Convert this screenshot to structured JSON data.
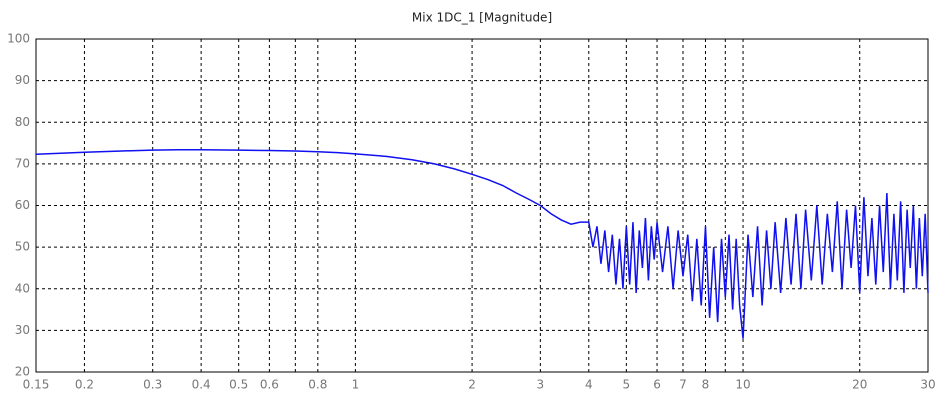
{
  "chart_data": {
    "type": "line",
    "title": "Mix 1DC_1 [Magnitude]",
    "log_x": true,
    "grid": true,
    "color": "#1010f0",
    "xlim": [
      0.15,
      30
    ],
    "ylim": [
      20,
      100
    ],
    "xticks": [
      0.15,
      0.2,
      0.3,
      0.4,
      0.5,
      0.6,
      {
        "value": 0.7,
        "label": null
      },
      0.8,
      1,
      2,
      3,
      4,
      5,
      6,
      7,
      8,
      {
        "value": 9,
        "label": null
      },
      10,
      20,
      30
    ],
    "yticks": [
      20,
      30,
      40,
      50,
      60,
      70,
      80,
      90,
      100
    ],
    "x": [
      0.15,
      0.18,
      0.2,
      0.25,
      0.3,
      0.35,
      0.4,
      0.5,
      0.6,
      0.7,
      0.8,
      0.9,
      1,
      1.2,
      1.4,
      1.6,
      1.8,
      2,
      2.2,
      2.4,
      2.6,
      2.8,
      3,
      3.2,
      3.4,
      3.6,
      3.8,
      4.0,
      4.1,
      4.2,
      4.3,
      4.4,
      4.5,
      4.6,
      4.7,
      4.8,
      4.9,
      5.0,
      5.1,
      5.2,
      5.3,
      5.4,
      5.5,
      5.6,
      5.7,
      5.8,
      5.9,
      6.0,
      6.2,
      6.4,
      6.6,
      6.8,
      7.0,
      7.2,
      7.4,
      7.6,
      7.8,
      8.0,
      8.2,
      8.4,
      8.6,
      8.8,
      9.0,
      9.2,
      9.4,
      9.6,
      9.8,
      10,
      10.3,
      10.6,
      10.9,
      11.2,
      11.5,
      11.8,
      12.1,
      12.5,
      12.9,
      13.3,
      13.7,
      14.1,
      14.5,
      15,
      15.5,
      16,
      16.5,
      17,
      17.5,
      18,
      18.5,
      19,
      19.5,
      20,
      20.5,
      21,
      21.5,
      22,
      22.5,
      23,
      23.5,
      24,
      24.5,
      25,
      25.5,
      26,
      26.5,
      27,
      27.5,
      28,
      28.5,
      29,
      29.5,
      30
    ],
    "values": [
      72.3,
      72.6,
      72.8,
      73.1,
      73.3,
      73.4,
      73.4,
      73.3,
      73.2,
      73.1,
      72.9,
      72.7,
      72.4,
      71.8,
      71,
      70,
      68.8,
      67.5,
      66.2,
      64.8,
      63,
      61.5,
      60,
      58,
      56.5,
      55.5,
      56,
      56,
      50,
      55,
      46,
      54,
      44,
      53,
      41,
      52,
      40,
      55,
      41,
      56,
      39,
      54,
      45,
      57,
      42,
      55,
      47,
      56,
      44,
      55,
      40,
      54,
      43,
      53,
      37,
      52,
      36,
      55,
      33,
      50,
      32,
      52,
      38,
      53,
      35,
      52,
      36,
      28,
      53,
      38,
      55,
      36,
      54,
      40,
      56,
      39,
      57,
      41,
      58,
      40,
      59,
      42,
      60,
      41,
      58,
      44,
      61,
      40,
      59,
      45,
      60,
      39,
      62,
      43,
      57,
      41,
      60,
      44,
      63,
      40,
      58,
      42,
      61,
      39,
      59,
      45,
      60,
      40,
      57,
      43,
      58,
      39
    ]
  }
}
